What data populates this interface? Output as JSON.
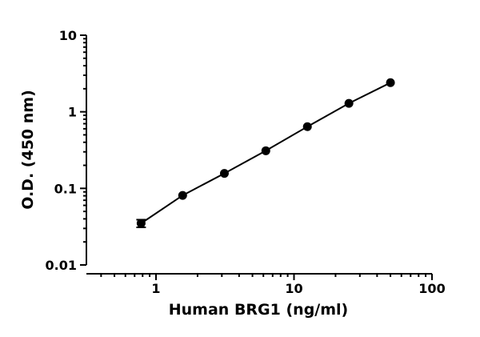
{
  "chart_data": {
    "type": "scatter",
    "title": "",
    "xlabel": "Human BRG1 (ng/ml)",
    "ylabel": "O.D. (450 nm)",
    "xscale": "log",
    "yscale": "log",
    "xlim": [
      0.4,
      100
    ],
    "ylim": [
      0.01,
      10
    ],
    "xticks": [
      1,
      10,
      100
    ],
    "xtick_labels": [
      "1",
      "10",
      "100"
    ],
    "yticks": [
      0.01,
      0.1,
      1,
      10
    ],
    "ytick_labels": [
      "0.01",
      "0.1",
      "1",
      "10"
    ],
    "grid": false,
    "legend": "none",
    "color": "#000000",
    "series": [
      {
        "x": [
          0.78,
          1.56,
          3.13,
          6.25,
          12.5,
          25,
          50
        ],
        "y": [
          0.035,
          0.081,
          0.157,
          0.31,
          0.64,
          1.29,
          2.4
        ],
        "error": [
          0.004,
          0,
          0,
          0,
          0,
          0,
          0
        ],
        "fit_line": true
      }
    ]
  }
}
